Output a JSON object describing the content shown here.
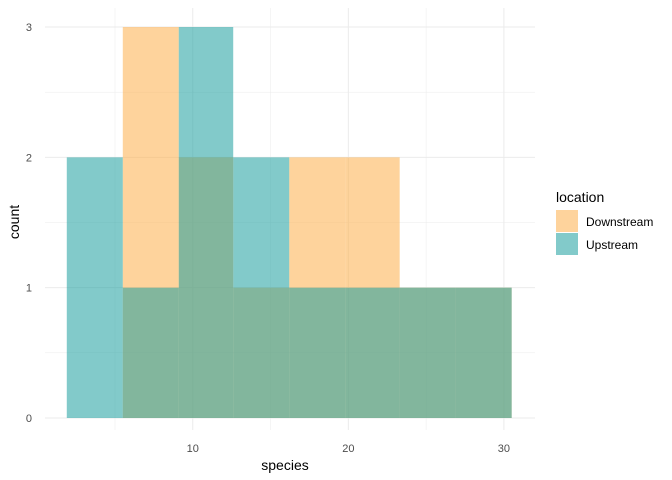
{
  "chart_data": {
    "type": "histogram",
    "xlabel": "species",
    "ylabel": "count",
    "xlim": [
      0.5,
      32
    ],
    "ylim": [
      0,
      3
    ],
    "x_ticks": [
      10,
      20,
      30
    ],
    "y_ticks": [
      0,
      1,
      2,
      3
    ],
    "grid": true,
    "legend": {
      "title": "location",
      "position": "right"
    },
    "series": [
      {
        "name": "Downstream",
        "color": "#FDAE4B",
        "bins": [
          {
            "x0": 5.5,
            "x1": 9.1,
            "count": 3
          },
          {
            "x0": 9.1,
            "x1": 12.6,
            "count": 2
          },
          {
            "x0": 12.6,
            "x1": 16.2,
            "count": 1
          },
          {
            "x0": 16.2,
            "x1": 19.8,
            "count": 2
          },
          {
            "x0": 19.8,
            "x1": 23.3,
            "count": 2
          },
          {
            "x0": 23.3,
            "x1": 26.9,
            "count": 1
          },
          {
            "x0": 26.9,
            "x1": 30.5,
            "count": 1
          }
        ]
      },
      {
        "name": "Upstream",
        "color": "#1B9E9E",
        "bins": [
          {
            "x0": 1.9,
            "x1": 5.5,
            "count": 2
          },
          {
            "x0": 5.5,
            "x1": 9.1,
            "count": 1
          },
          {
            "x0": 9.1,
            "x1": 12.6,
            "count": 3
          },
          {
            "x0": 12.6,
            "x1": 16.2,
            "count": 2
          },
          {
            "x0": 16.2,
            "x1": 19.8,
            "count": 1
          },
          {
            "x0": 19.8,
            "x1": 23.3,
            "count": 1
          },
          {
            "x0": 23.3,
            "x1": 26.9,
            "count": 1
          },
          {
            "x0": 26.9,
            "x1": 30.5,
            "count": 1
          }
        ]
      }
    ]
  }
}
